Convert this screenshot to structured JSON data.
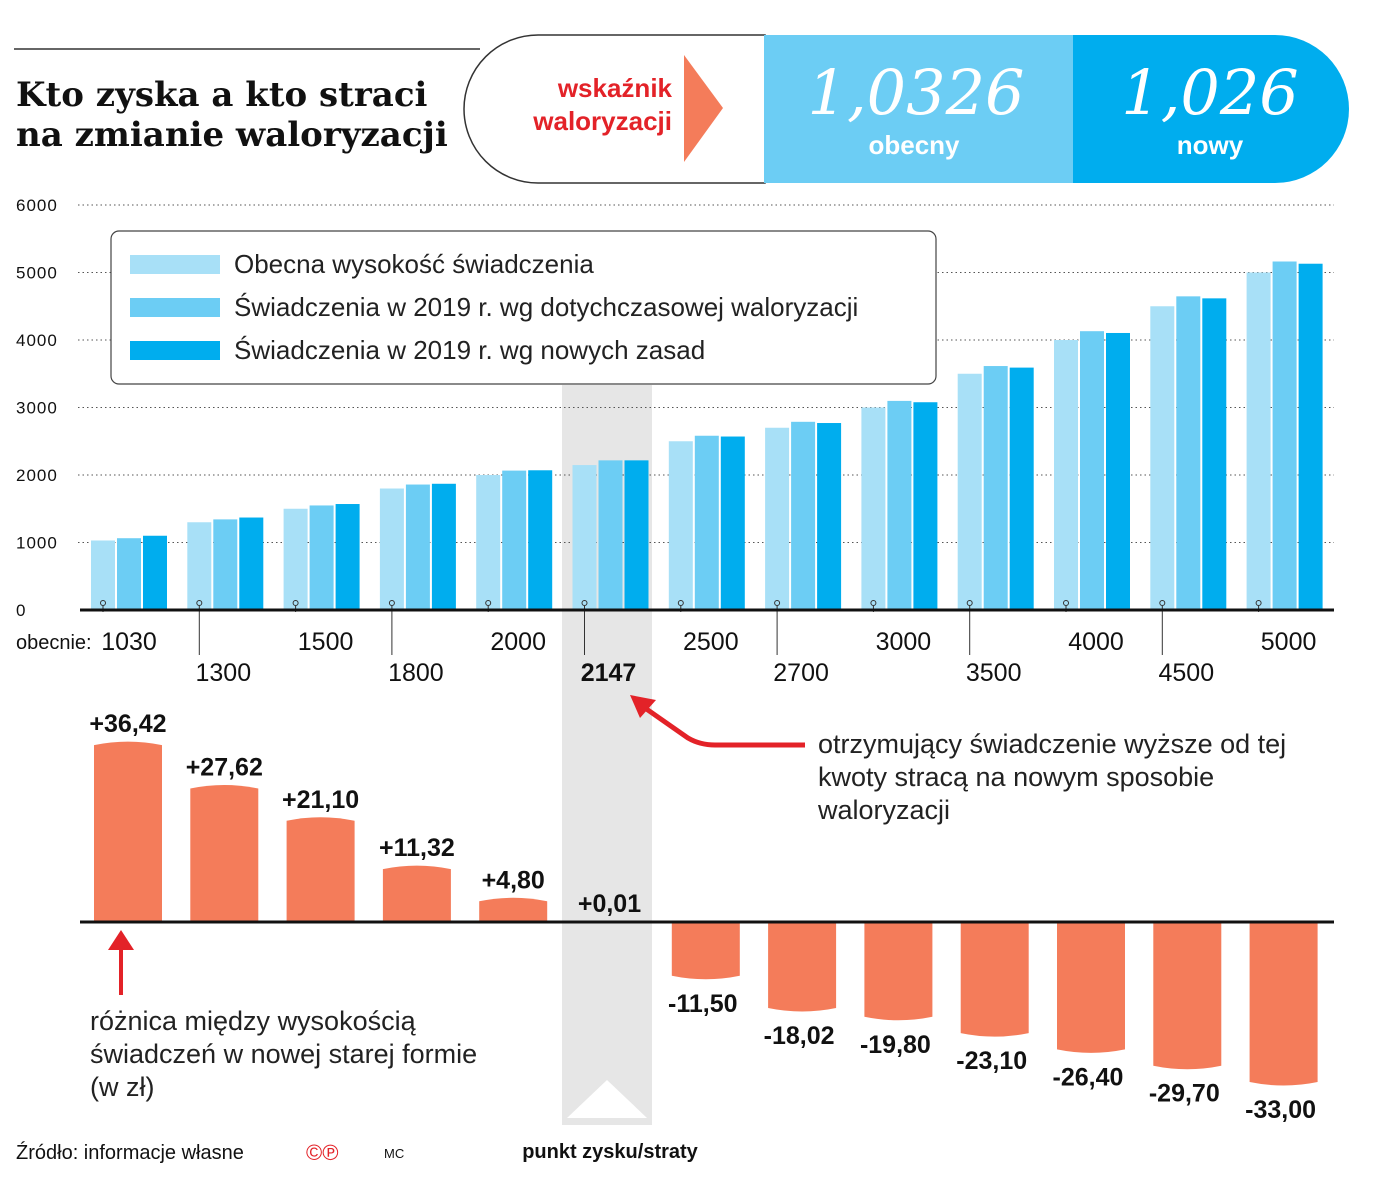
{
  "title_lines": [
    "Kto zyska a kto straci",
    "na zmianie waloryzacji"
  ],
  "indicator": {
    "label_lines": [
      "wskaźnik",
      "waloryzacji"
    ],
    "current": {
      "value": "1,0326",
      "label": "obecny"
    },
    "new": {
      "value": "1,026",
      "label": "nowy"
    }
  },
  "colors": {
    "current": "#a8e0f7",
    "old_rule": "#6ccdf4",
    "new_rule": "#00adee",
    "difference": "#f47c5a",
    "accent_red": "#e32228",
    "highlight_band": "#e6e6e6"
  },
  "chart_data": [
    {
      "type": "bar",
      "ylim": [
        0,
        6000
      ],
      "yticks": [
        "0",
        "1000",
        "2000",
        "3000",
        "4000",
        "5000",
        "6000"
      ],
      "grid": true,
      "legend_placement": "top-left",
      "x_prefix_label": "obecnie:",
      "categories": [
        "1030",
        "1300",
        "1500",
        "1800",
        "2000",
        "2147",
        "2500",
        "2700",
        "3000",
        "3500",
        "4000",
        "4500",
        "5000"
      ],
      "highlight_category": "2147",
      "series": [
        {
          "name": "Obecna wysokość świadczenia",
          "values": [
            1030,
            1300,
            1500,
            1800,
            2000,
            2147,
            2500,
            2700,
            3000,
            3500,
            4000,
            4500,
            5000
          ]
        },
        {
          "name": "Świadczenia w 2019 r. wg dotychczasowej waloryzacji",
          "values": [
            1063.58,
            1342.38,
            1548.9,
            1858.68,
            2065.2,
            2216.99,
            2581.5,
            2788.02,
            3097.8,
            3614.1,
            4130.4,
            4646.7,
            5163.0
          ]
        },
        {
          "name": "Świadczenia w 2019 r. wg nowych zasad",
          "values": [
            1100,
            1370,
            1570,
            1870,
            2070,
            2217,
            2570,
            2770,
            3078,
            3591,
            4104,
            4617,
            5130
          ]
        }
      ]
    },
    {
      "type": "bar",
      "categories": [
        "1030",
        "1300",
        "1500",
        "1800",
        "2000",
        "2147",
        "2500",
        "2700",
        "3000",
        "3500",
        "4000",
        "4500",
        "5000"
      ],
      "values": [
        36.42,
        27.62,
        21.1,
        11.32,
        4.8,
        0.01,
        -11.5,
        -18.02,
        -19.8,
        -23.1,
        -26.4,
        -29.7,
        -33.0
      ],
      "data_labels": [
        "+36,42",
        "+27,62",
        "+21,10",
        "+11,32",
        "+4,80",
        "+0,01",
        "-11,50",
        "-18,02",
        "-19,80",
        "-23,10",
        "-26,40",
        "-29,70",
        "-33,00"
      ]
    }
  ],
  "annotations": {
    "loss_note": [
      "otrzymujący świadczenie wyższe od tej",
      "kwoty stracą na nowym sposobie",
      "waloryzacji"
    ],
    "diff_note": [
      "różnica między wysokością",
      "świadczeń w nowej starej formie",
      "(w zł)"
    ],
    "band_label": "punkt zysku/straty"
  },
  "footer": {
    "source": "Źródło: informacje własne",
    "logo": "©℗",
    "author": "MC"
  }
}
